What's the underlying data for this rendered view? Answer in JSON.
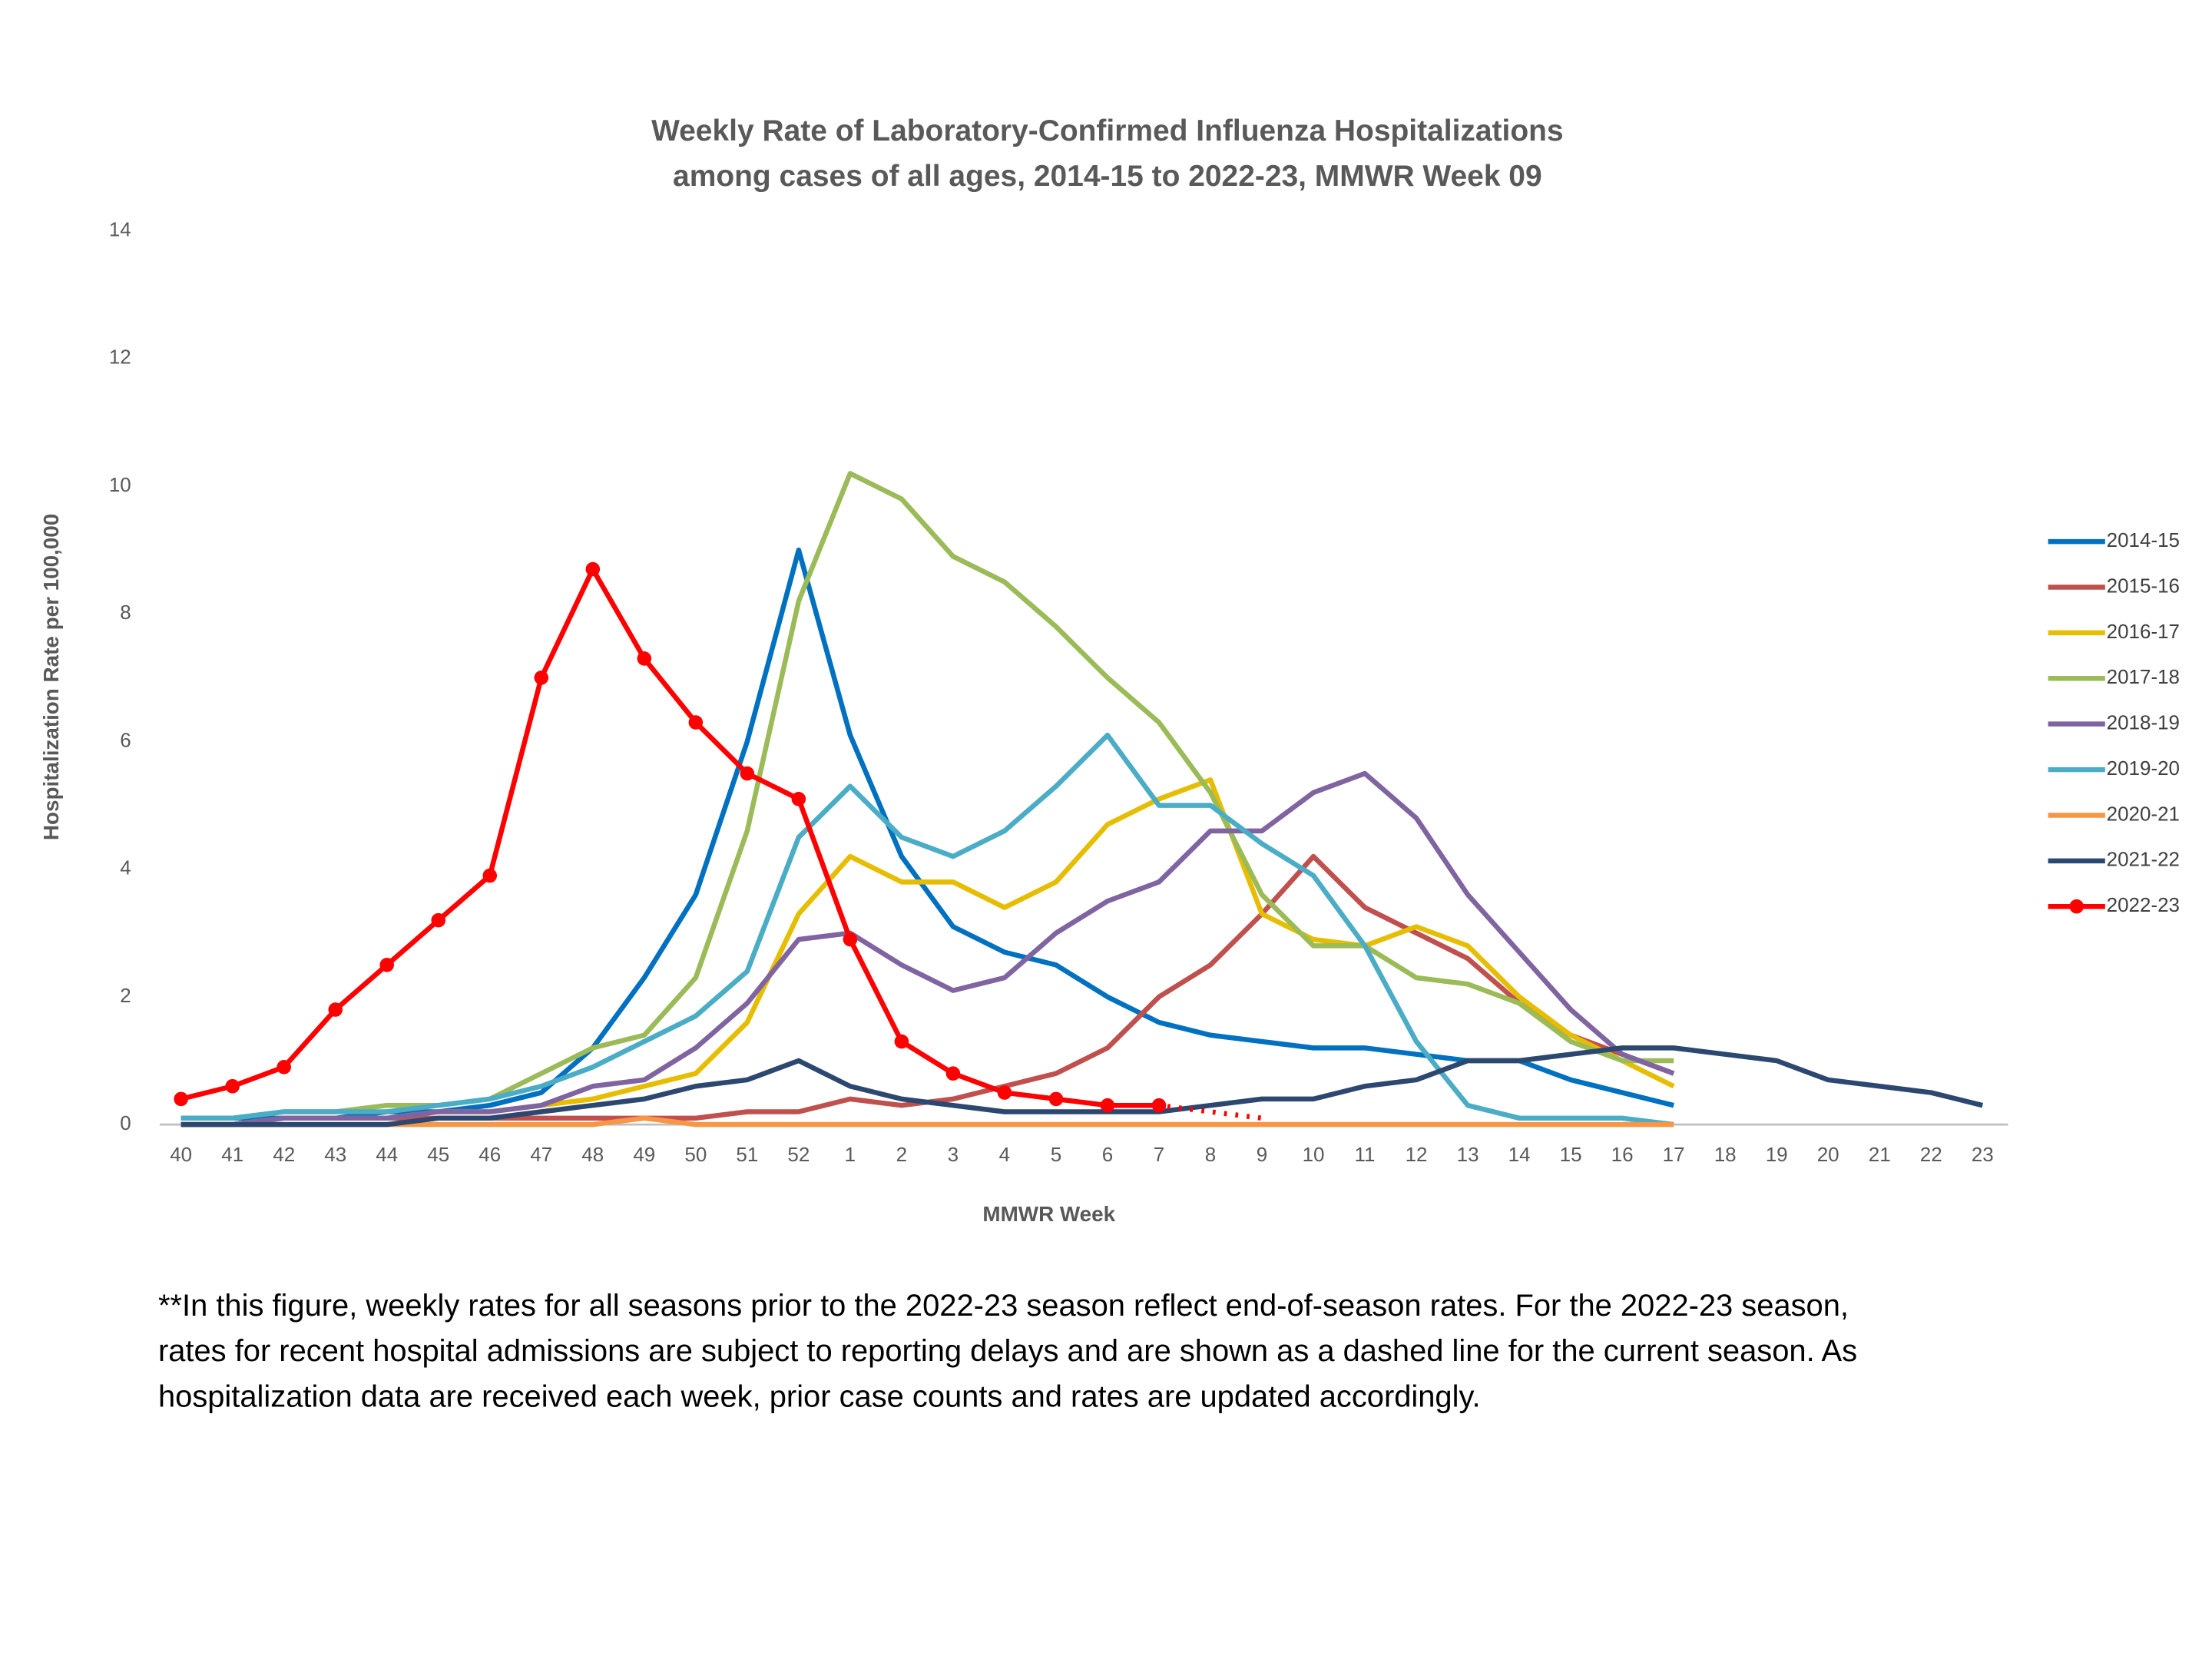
{
  "chart_data": {
    "type": "line",
    "title": "Weekly Rate of Laboratory-Confirmed Influenza Hospitalizations",
    "subtitle": "among cases of all ages, 2014-15 to 2022-23, MMWR Week 09",
    "x_label": "MMWR Week",
    "y_label": "Hospitalization Rate per 100,000",
    "categories": [
      "40",
      "41",
      "42",
      "43",
      "44",
      "45",
      "46",
      "47",
      "48",
      "49",
      "50",
      "51",
      "52",
      "1",
      "2",
      "3",
      "4",
      "5",
      "6",
      "7",
      "8",
      "9",
      "10",
      "11",
      "12",
      "13",
      "14",
      "15",
      "16",
      "17",
      "18",
      "19",
      "20",
      "21",
      "22",
      "23"
    ],
    "ylim": [
      0,
      14
    ],
    "yticks": [
      0,
      2,
      4,
      6,
      8,
      10,
      12,
      14
    ],
    "grid": false,
    "legend": "right",
    "dashed_from": "7",
    "series": [
      {
        "name": "2014-15",
        "color": "#0070c0",
        "values": [
          0.1,
          0.1,
          0.1,
          0.1,
          0.2,
          0.2,
          0.3,
          0.5,
          1.2,
          2.3,
          3.6,
          6.0,
          9.0,
          6.1,
          4.2,
          3.1,
          2.7,
          2.5,
          2.0,
          1.6,
          1.4,
          1.3,
          1.2,
          1.2,
          1.1,
          1.0,
          1.0,
          0.7,
          0.5,
          0.3,
          null,
          null,
          null,
          null,
          null,
          null
        ]
      },
      {
        "name": "2015-16",
        "color": "#c0504d",
        "values": [
          0.0,
          0.0,
          0.1,
          0.1,
          0.1,
          0.1,
          0.1,
          0.1,
          0.1,
          0.1,
          0.1,
          0.2,
          0.2,
          0.4,
          0.3,
          0.4,
          0.6,
          0.8,
          1.2,
          2.0,
          2.5,
          3.3,
          4.2,
          3.4,
          3.0,
          2.6,
          1.9,
          1.4,
          1.1,
          0.8,
          null,
          null,
          null,
          null,
          null,
          null
        ]
      },
      {
        "name": "2016-17",
        "color": "#e6bd00",
        "values": [
          0.0,
          0.0,
          0.1,
          0.1,
          0.1,
          0.2,
          0.2,
          0.3,
          0.4,
          0.6,
          0.8,
          1.6,
          3.3,
          4.2,
          3.8,
          3.8,
          3.4,
          3.8,
          4.7,
          5.1,
          5.4,
          3.3,
          2.9,
          2.8,
          3.1,
          2.8,
          2.0,
          1.4,
          1.0,
          0.6,
          null,
          null,
          null,
          null,
          null,
          null
        ]
      },
      {
        "name": "2017-18",
        "color": "#9bbb59",
        "values": [
          0.1,
          0.1,
          0.2,
          0.2,
          0.3,
          0.3,
          0.4,
          0.8,
          1.2,
          1.4,
          2.3,
          4.6,
          8.2,
          10.2,
          9.8,
          8.9,
          8.5,
          7.8,
          7.0,
          6.3,
          5.2,
          3.6,
          2.8,
          2.8,
          2.3,
          2.2,
          1.9,
          1.3,
          1.0,
          1.0,
          null,
          null,
          null,
          null,
          null,
          null
        ]
      },
      {
        "name": "2018-19",
        "color": "#8064a2",
        "values": [
          0.0,
          0.0,
          0.1,
          0.1,
          0.1,
          0.2,
          0.2,
          0.3,
          0.6,
          0.7,
          1.2,
          1.9,
          2.9,
          3.0,
          2.5,
          2.1,
          2.3,
          3.0,
          3.5,
          3.8,
          4.6,
          4.6,
          5.2,
          5.5,
          4.8,
          3.6,
          2.7,
          1.8,
          1.1,
          0.8,
          null,
          null,
          null,
          null,
          null,
          null
        ]
      },
      {
        "name": "2019-20",
        "color": "#4bacc6",
        "values": [
          0.1,
          0.1,
          0.2,
          0.2,
          0.2,
          0.3,
          0.4,
          0.6,
          0.9,
          1.3,
          1.7,
          2.4,
          4.5,
          5.3,
          4.5,
          4.2,
          4.6,
          5.3,
          6.1,
          5.0,
          5.0,
          4.4,
          3.9,
          2.8,
          1.3,
          0.3,
          0.1,
          0.1,
          0.1,
          0.0,
          null,
          null,
          null,
          null,
          null,
          null
        ]
      },
      {
        "name": "2020-21",
        "color": "#f79646",
        "values": [
          0.0,
          0.0,
          0.0,
          0.0,
          0.0,
          0.0,
          0.0,
          0.0,
          0.0,
          0.1,
          0.0,
          0.0,
          0.0,
          0.0,
          0.0,
          0.0,
          0.0,
          0.0,
          0.0,
          0.0,
          0.0,
          0.0,
          0.0,
          0.0,
          0.0,
          0.0,
          0.0,
          0.0,
          0.0,
          0.0,
          null,
          null,
          null,
          null,
          null,
          null
        ]
      },
      {
        "name": "2021-22",
        "color": "#2c4770",
        "values": [
          0.0,
          0.0,
          0.0,
          0.0,
          0.0,
          0.1,
          0.1,
          0.2,
          0.3,
          0.4,
          0.6,
          0.7,
          1.0,
          0.6,
          0.4,
          0.3,
          0.2,
          0.2,
          0.2,
          0.2,
          0.3,
          0.4,
          0.4,
          0.6,
          0.7,
          1.0,
          1.0,
          1.1,
          1.2,
          1.2,
          1.1,
          1.0,
          0.7,
          0.6,
          0.5,
          0.3
        ]
      },
      {
        "name": "2022-23",
        "color": "#ff0000",
        "markers": true,
        "values": [
          0.4,
          0.6,
          0.9,
          1.8,
          2.5,
          3.2,
          3.9,
          7.0,
          8.7,
          7.3,
          6.3,
          5.5,
          5.1,
          2.9,
          1.3,
          0.8,
          0.5,
          0.4,
          0.3,
          0.3,
          0.2,
          0.1,
          null,
          null,
          null,
          null,
          null,
          null,
          null,
          null,
          null,
          null,
          null,
          null,
          null,
          null
        ]
      }
    ]
  },
  "footnote": [
    "**In this figure, weekly rates for all seasons prior to the 2022-23 season reflect end-of-season rates. For the 2022-23 season,",
    "rates for recent hospital admissions are subject to reporting delays and are shown as a dashed line for the current season. As",
    "hospitalization data are received each week, prior case counts and rates are updated accordingly."
  ]
}
